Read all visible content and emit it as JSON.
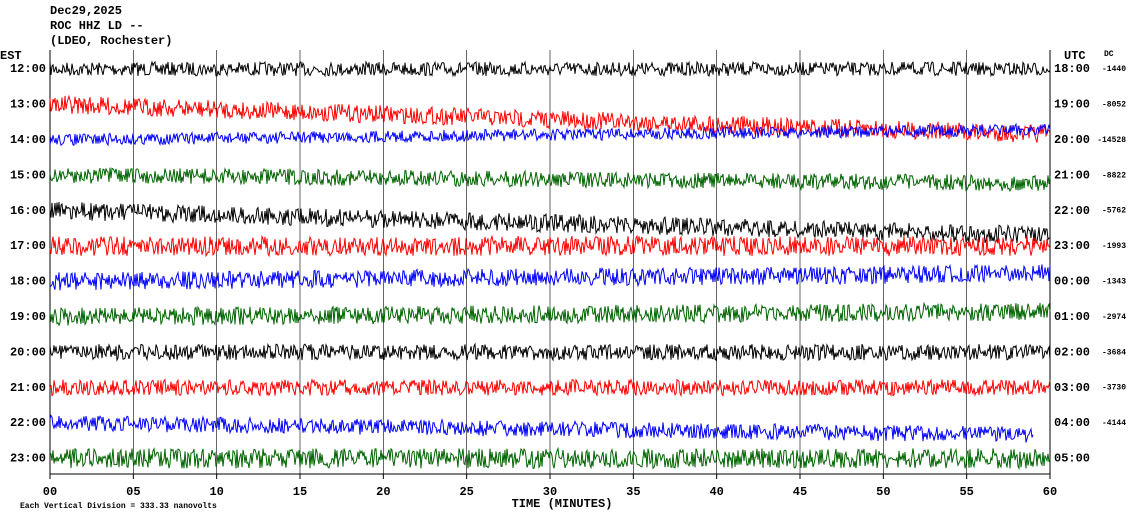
{
  "chart_data": {
    "type": "helicorder",
    "title": "Dec29,2025",
    "subtitle": "ROC HHZ LD --",
    "station": "(LDEO, Rochester)",
    "left_axis_label": "EST",
    "right_axis_label": "UTC",
    "dc_label": "DC",
    "xlabel": "TIME (MINUTES)",
    "footer": "Each Vertical Division = 333.33 nanovolts",
    "xlim": [
      0,
      60
    ],
    "xticks": [
      {
        "value": 0,
        "label": "00"
      },
      {
        "value": 5,
        "label": "05"
      },
      10,
      15,
      20,
      25,
      30,
      35,
      40,
      45,
      50,
      55,
      60
    ],
    "rows": [
      {
        "est": "12:00",
        "utc": "18:00",
        "dc": -1440,
        "color": "#000000"
      },
      {
        "est": "13:00",
        "utc": "19:00",
        "dc": -8052,
        "color": "#ff0000"
      },
      {
        "est": "14:00",
        "utc": "20:00",
        "dc": -14528,
        "color": "#0000ff"
      },
      {
        "est": "15:00",
        "utc": "21:00",
        "dc": -8822,
        "color": "#006400"
      },
      {
        "est": "16:00",
        "utc": "22:00",
        "dc": -5762,
        "color": "#000000"
      },
      {
        "est": "17:00",
        "utc": "23:00",
        "dc": -1993,
        "color": "#ff0000"
      },
      {
        "est": "18:00",
        "utc": "00:00",
        "dc": -1343,
        "color": "#0000ff"
      },
      {
        "est": "19:00",
        "utc": "01:00",
        "dc": -2974,
        "color": "#006400"
      },
      {
        "est": "20:00",
        "utc": "02:00",
        "dc": -3684,
        "color": "#000000"
      },
      {
        "est": "21:00",
        "utc": "03:00",
        "dc": -3730,
        "color": "#ff0000"
      },
      {
        "est": "22:00",
        "utc": "04:00",
        "dc": -4144,
        "color": "#0000ff"
      },
      {
        "est": "23:00",
        "utc": "05:00",
        "color": "#006400"
      }
    ]
  }
}
